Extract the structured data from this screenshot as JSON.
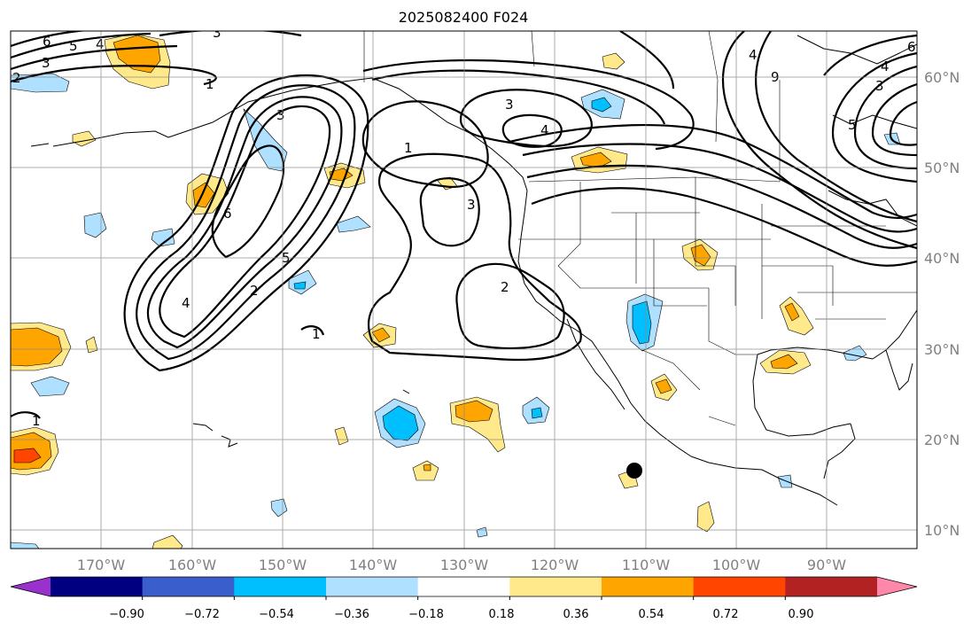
{
  "title": "2025082400 F024",
  "map": {
    "lon_labels": [
      "170°W",
      "160°W",
      "150°W",
      "140°W",
      "130°W",
      "120°W",
      "110°W",
      "100°W",
      "90°W"
    ],
    "lat_labels": [
      "60°N",
      "50°N",
      "40°N",
      "30°N",
      "20°N",
      "10°N"
    ],
    "contour_labels": [
      "6",
      "5",
      "4",
      "3",
      "2",
      "1",
      "3",
      "4",
      "3",
      "1",
      "3",
      "2",
      "1",
      "2",
      "4",
      "6",
      "5",
      "4",
      "9",
      "3",
      "4",
      "5",
      "6",
      "3",
      "1"
    ],
    "marker": "black-dot"
  },
  "colorbar": {
    "tick_labels": [
      "−0.90",
      "−0.72",
      "−0.54",
      "−0.36",
      "−0.18",
      "0.18",
      "0.36",
      "0.54",
      "0.72",
      "0.90"
    ],
    "colors": [
      "#9932cc",
      "#000080",
      "#3a5fcd",
      "#00bfff",
      "#afe0ff",
      "#ffffff",
      "#ffe98a",
      "#ffa500",
      "#ff4500",
      "#b22222",
      "#ff88aa"
    ]
  }
}
